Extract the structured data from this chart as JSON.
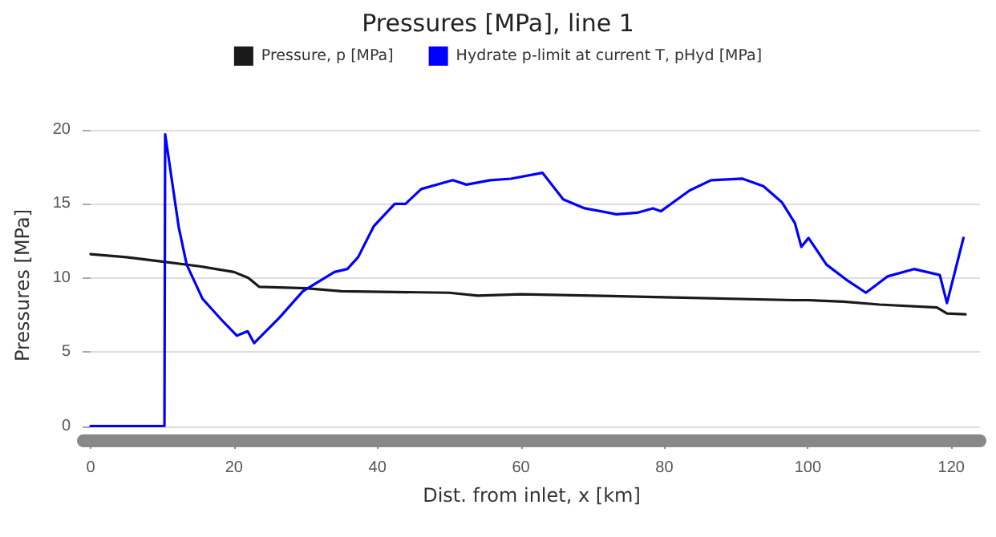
{
  "chart_data": {
    "type": "line",
    "title": "Pressures [MPa], line 1",
    "xlabel": "Dist. from inlet, x [km]",
    "ylabel": "Pressures [MPa]",
    "legend": "top",
    "grid": "y",
    "marker": "none",
    "xlim": [
      -1,
      124
    ],
    "xticks": [
      0,
      20,
      40,
      60,
      80,
      100,
      120
    ],
    "ylim": [
      -1,
      20
    ],
    "yticks": [
      0,
      5,
      10,
      15,
      20
    ],
    "series": [
      {
        "name": "Pressure, p [MPa]",
        "color": "#1a1a1a",
        "x": [
          0,
          5,
          10,
          15,
          20,
          22,
          23.5,
          30,
          35,
          50,
          54,
          60,
          80,
          98,
          100,
          105,
          110,
          118,
          119.4,
          122
        ],
        "values": [
          11.6,
          11.4,
          11.1,
          10.8,
          10.4,
          10.0,
          9.4,
          9.3,
          9.1,
          9.0,
          8.8,
          8.9,
          8.7,
          8.5,
          8.5,
          8.4,
          8.2,
          8.0,
          7.6,
          7.55
        ]
      },
      {
        "name": "Hydrate p-limit at current T, pHyd [MPa]",
        "color": "#0000ff",
        "x": [
          0,
          10.3,
          10.4,
          12.3,
          13.4,
          15.6,
          18.2,
          20.4,
          21.9,
          22.8,
          26.3,
          29.6,
          34.0,
          35.8,
          37.3,
          39.5,
          42.4,
          43.9,
          46.1,
          50.5,
          52.4,
          55.7,
          58.6,
          63.0,
          65.9,
          68.9,
          73.3,
          76.2,
          78.4,
          79.5,
          83.5,
          86.5,
          90.9,
          93.8,
          96.4,
          98.2,
          99.1,
          100.1,
          102.6,
          105.6,
          108.1,
          111.1,
          114.8,
          118.4,
          119.4,
          121.7
        ],
        "values": [
          0,
          0,
          19.7,
          13.4,
          10.9,
          8.6,
          7.2,
          6.1,
          6.4,
          5.6,
          7.3,
          9.1,
          10.4,
          10.6,
          11.4,
          13.5,
          15.0,
          15.0,
          16.0,
          16.6,
          16.3,
          16.6,
          16.7,
          17.1,
          15.3,
          14.7,
          14.3,
          14.4,
          14.7,
          14.5,
          15.9,
          16.6,
          16.7,
          16.2,
          15.1,
          13.7,
          12.1,
          12.7,
          10.9,
          9.8,
          9.0,
          10.1,
          10.6,
          10.2,
          8.3,
          12.7
        ]
      }
    ]
  }
}
